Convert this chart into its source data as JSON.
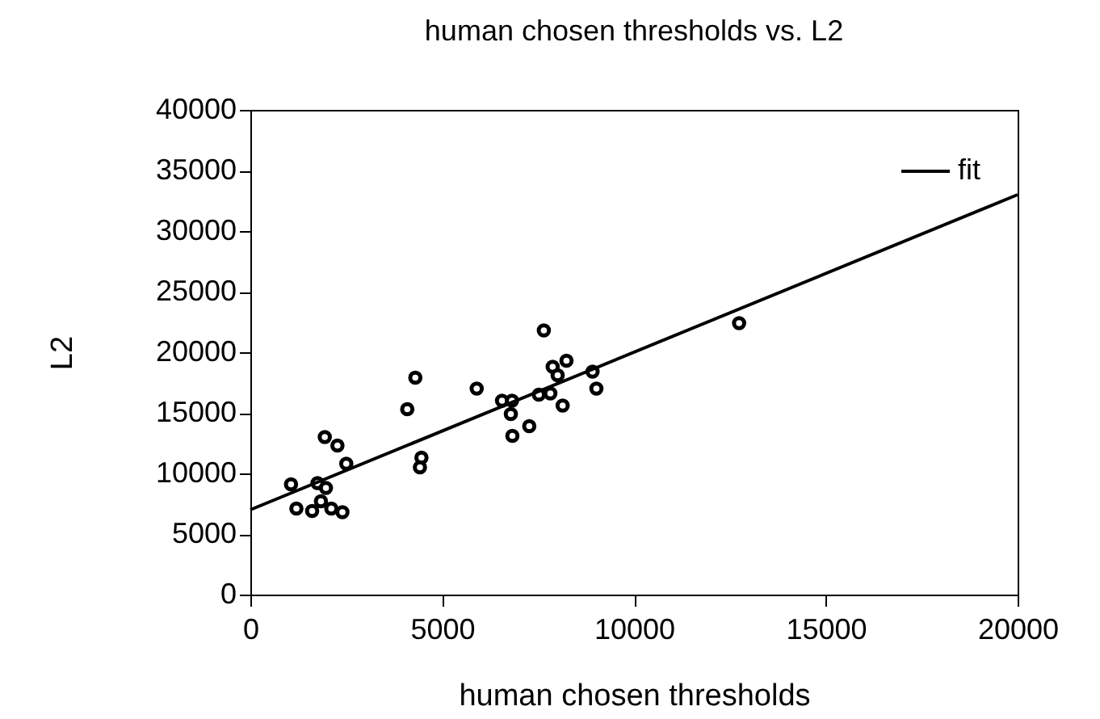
{
  "chart_data": {
    "type": "scatter",
    "title": "human chosen thresholds vs. L2",
    "xlabel": "human chosen thresholds",
    "ylabel": "L2",
    "xlim": [
      0,
      20000
    ],
    "xticks": [
      0,
      5000,
      10000,
      15000,
      20000
    ],
    "ylim": [
      0,
      40000
    ],
    "yticks": [
      0,
      5000,
      10000,
      15000,
      20000,
      25000,
      30000,
      35000,
      40000
    ],
    "grid": false,
    "legend": "top right",
    "series": [
      {
        "marker": "circle",
        "color": "#000000",
        "x": [
          1060,
          1200,
          1610,
          1750,
          1970,
          1840,
          1940,
          2110,
          2270,
          2400,
          2500,
          4090,
          4300,
          4460,
          4420,
          5900,
          6560,
          6820,
          6790,
          6830,
          7270,
          7520,
          7650,
          7820,
          7880,
          8010,
          8140,
          8240,
          8920,
          9020,
          12740
        ],
        "values": [
          9100,
          7100,
          6900,
          9200,
          8800,
          7700,
          13000,
          7100,
          12300,
          6800,
          10800,
          15300,
          17900,
          11300,
          10500,
          17000,
          16000,
          16000,
          14900,
          13100,
          13900,
          16500,
          21800,
          16600,
          18800,
          18100,
          15600,
          19300,
          18400,
          17000,
          22400
        ]
      },
      {
        "type": "line",
        "marker": "none",
        "name": "fit",
        "color": "#000000",
        "x": [
          0,
          20000
        ],
        "values": [
          7000,
          33000
        ]
      }
    ]
  }
}
